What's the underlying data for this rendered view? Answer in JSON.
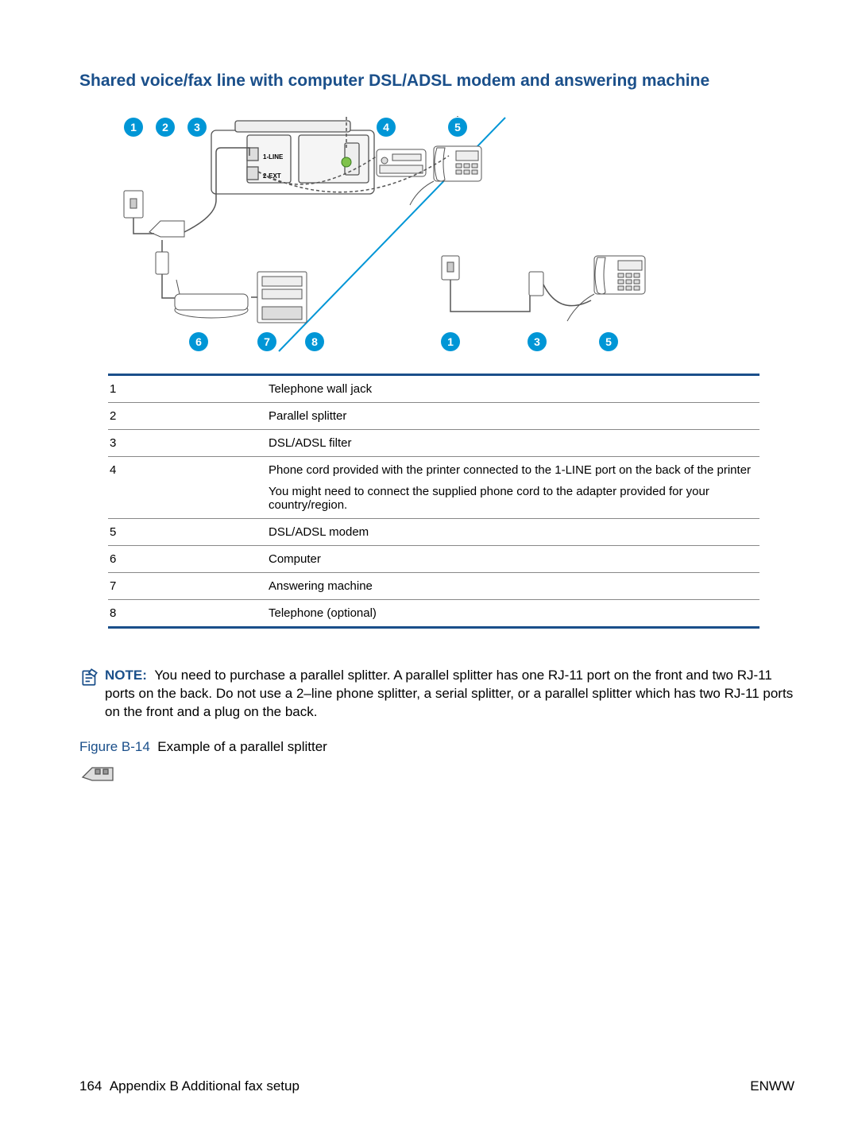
{
  "title": "Shared voice/fax line with computer DSL/ADSL modem and answering machine",
  "colors": {
    "heading": "#1a4f8a",
    "accent_blue": "#0096d6",
    "marker_fill": "#0096d6",
    "marker_text": "#ffffff",
    "table_border": "#888888",
    "table_rule_heavy": "#1a4f8a",
    "line_gray": "#555555"
  },
  "markers_top": [
    "1",
    "2",
    "3",
    "4",
    "5"
  ],
  "markers_bottom_left": [
    "6",
    "7",
    "8"
  ],
  "markers_bottom_right": [
    "1",
    "3",
    "5"
  ],
  "port_labels": {
    "line": "1-LINE",
    "ext": "2-EXT"
  },
  "legend": [
    {
      "n": "1",
      "text": "Telephone wall jack"
    },
    {
      "n": "2",
      "text": "Parallel splitter"
    },
    {
      "n": "3",
      "text": "DSL/ADSL filter"
    },
    {
      "n": "4",
      "text": "Phone cord provided with the printer connected to the 1-LINE port on the back of the printer",
      "sub": "You might need to connect the supplied phone cord to the adapter provided for your country/region."
    },
    {
      "n": "5",
      "text": "DSL/ADSL modem"
    },
    {
      "n": "6",
      "text": "Computer"
    },
    {
      "n": "7",
      "text": "Answering machine"
    },
    {
      "n": "8",
      "text": "Telephone (optional)"
    }
  ],
  "note": {
    "label": "NOTE:",
    "text": "You need to purchase a parallel splitter. A parallel splitter has one RJ-11 port on the front and two RJ-11 ports on the back. Do not use a 2–line phone splitter, a serial splitter, or a parallel splitter which has two RJ-11 ports on the front and a plug on the back."
  },
  "figure": {
    "label": "Figure B-14",
    "caption": "Example of a parallel splitter"
  },
  "footer": {
    "page": "164",
    "chapter": "Appendix B   Additional fax setup",
    "lang": "ENWW"
  }
}
